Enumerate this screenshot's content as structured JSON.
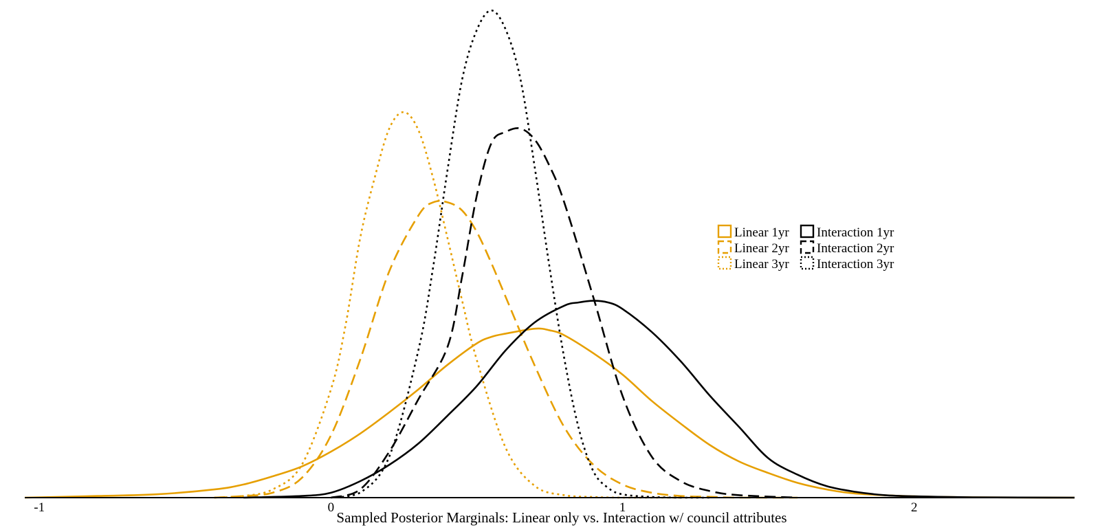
{
  "chart_data": {
    "type": "line",
    "title": "",
    "xlabel": "Sampled Posterior Marginals: Linear only vs. Interaction w/ council attributes",
    "ylabel": "",
    "xlim": [
      -1.05,
      2.55
    ],
    "ylim": [
      0,
      3.0
    ],
    "xticks": [
      -1,
      0,
      1,
      2
    ],
    "xtick_labels": [
      "-1",
      "0",
      "1",
      "2"
    ],
    "grid": false,
    "legend_position": "right",
    "series": [
      {
        "name": "Linear 1yr",
        "color": "#e69f00",
        "dash": "solid",
        "x": [
          -1.05,
          -0.8,
          -0.6,
          -0.4,
          -0.3,
          -0.2,
          -0.1,
          0.0,
          0.1,
          0.2,
          0.3,
          0.4,
          0.5,
          0.55,
          0.6,
          0.7,
          0.75,
          0.8,
          0.9,
          1.0,
          1.1,
          1.2,
          1.3,
          1.4,
          1.5,
          1.6,
          1.7,
          1.8,
          2.0,
          2.2,
          2.55
        ],
        "y": [
          0.0,
          0.01,
          0.02,
          0.05,
          0.08,
          0.13,
          0.19,
          0.28,
          0.39,
          0.52,
          0.66,
          0.81,
          0.94,
          0.98,
          1.0,
          1.03,
          1.02,
          0.99,
          0.88,
          0.75,
          0.59,
          0.45,
          0.32,
          0.22,
          0.15,
          0.09,
          0.05,
          0.025,
          0.008,
          0.002,
          0.0
        ]
      },
      {
        "name": "Linear 2yr",
        "color": "#e69f00",
        "dash": "dashed",
        "x": [
          -0.4,
          -0.3,
          -0.2,
          -0.1,
          0.0,
          0.1,
          0.2,
          0.3,
          0.35,
          0.4,
          0.45,
          0.5,
          0.55,
          0.6,
          0.7,
          0.8,
          0.9,
          1.0,
          1.1,
          1.2,
          1.3,
          1.4,
          1.6
        ],
        "y": [
          0.0,
          0.01,
          0.03,
          0.12,
          0.38,
          0.84,
          1.38,
          1.72,
          1.8,
          1.8,
          1.75,
          1.62,
          1.43,
          1.22,
          0.8,
          0.43,
          0.2,
          0.08,
          0.03,
          0.01,
          0.005,
          0.0,
          0.0
        ]
      },
      {
        "name": "Linear 3yr",
        "color": "#e69f00",
        "dash": "dotted",
        "x": [
          -0.4,
          -0.3,
          -0.2,
          -0.1,
          0.0,
          0.05,
          0.1,
          0.15,
          0.2,
          0.25,
          0.3,
          0.35,
          0.4,
          0.45,
          0.5,
          0.6,
          0.7,
          0.8,
          0.9,
          1.0,
          1.2
        ],
        "y": [
          0.0,
          0.01,
          0.05,
          0.2,
          0.66,
          1.05,
          1.58,
          1.95,
          2.25,
          2.35,
          2.24,
          1.95,
          1.58,
          1.2,
          0.84,
          0.3,
          0.07,
          0.015,
          0.004,
          0.0,
          0.0
        ]
      },
      {
        "name": "Interaction 1yr",
        "color": "#000000",
        "dash": "solid",
        "x": [
          -0.3,
          -0.1,
          0.0,
          0.1,
          0.2,
          0.3,
          0.4,
          0.5,
          0.6,
          0.7,
          0.8,
          0.85,
          0.9,
          0.95,
          1.0,
          1.1,
          1.2,
          1.3,
          1.4,
          1.5,
          1.6,
          1.7,
          1.8,
          1.9,
          2.0,
          2.2,
          2.55
        ],
        "y": [
          0.0,
          0.01,
          0.03,
          0.1,
          0.2,
          0.33,
          0.5,
          0.68,
          0.9,
          1.07,
          1.17,
          1.19,
          1.2,
          1.19,
          1.15,
          1.01,
          0.83,
          0.62,
          0.43,
          0.24,
          0.14,
          0.07,
          0.035,
          0.015,
          0.008,
          0.002,
          0.0
        ]
      },
      {
        "name": "Interaction 2yr",
        "color": "#000000",
        "dash": "dashed",
        "x": [
          0.0,
          0.1,
          0.2,
          0.3,
          0.4,
          0.45,
          0.5,
          0.55,
          0.6,
          0.65,
          0.7,
          0.75,
          0.8,
          0.9,
          1.0,
          1.1,
          1.2,
          1.3,
          1.4,
          1.6
        ],
        "y": [
          0.0,
          0.05,
          0.28,
          0.6,
          0.92,
          1.35,
          1.84,
          2.16,
          2.23,
          2.25,
          2.18,
          2.02,
          1.8,
          1.22,
          0.62,
          0.25,
          0.1,
          0.04,
          0.015,
          0.0
        ]
      },
      {
        "name": "Interaction 3yr",
        "color": "#000000",
        "dash": "dotted",
        "x": [
          0.0,
          0.1,
          0.2,
          0.3,
          0.35,
          0.4,
          0.45,
          0.5,
          0.55,
          0.6,
          0.65,
          0.7,
          0.75,
          0.8,
          0.85,
          0.9,
          0.95,
          1.0,
          1.1,
          1.2,
          1.3
        ],
        "y": [
          0.0,
          0.03,
          0.25,
          0.9,
          1.4,
          2.0,
          2.55,
          2.85,
          2.97,
          2.85,
          2.55,
          2.0,
          1.4,
          0.85,
          0.42,
          0.16,
          0.06,
          0.02,
          0.004,
          0.0,
          0.0
        ]
      }
    ]
  }
}
